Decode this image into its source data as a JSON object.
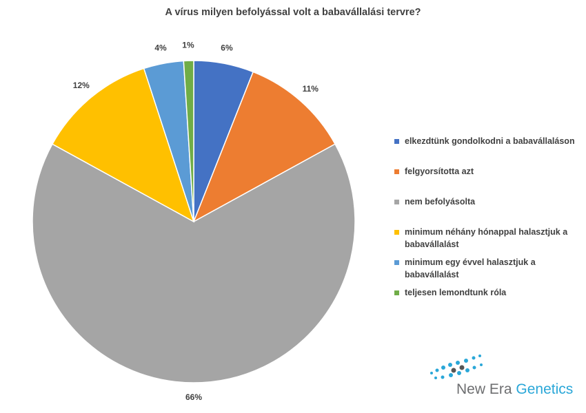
{
  "chart_data": {
    "type": "pie",
    "title": "A vírus milyen befolyással volt a babavállalási tervre?",
    "categories": [
      "elkezdtünk gondolkodni a babavállaláson",
      "felgyorsította azt",
      "nem befolyásolta",
      "minimum néhány hónappal halasztjuk a babavállalást",
      "minimum egy évvel halasztjuk a babavállalást",
      "teljesen lemondtunk róla"
    ],
    "values": [
      6,
      11,
      66,
      12,
      4,
      1
    ],
    "value_labels": [
      "6%",
      "11%",
      "66%",
      "12%",
      "4%",
      "1%"
    ],
    "colors": [
      "#4472c4",
      "#ed7d31",
      "#a5a5a5",
      "#ffc000",
      "#5b9bd5",
      "#70ad47"
    ],
    "legend": "right"
  },
  "logo": {
    "text": [
      "New Era",
      "Genetics"
    ]
  }
}
